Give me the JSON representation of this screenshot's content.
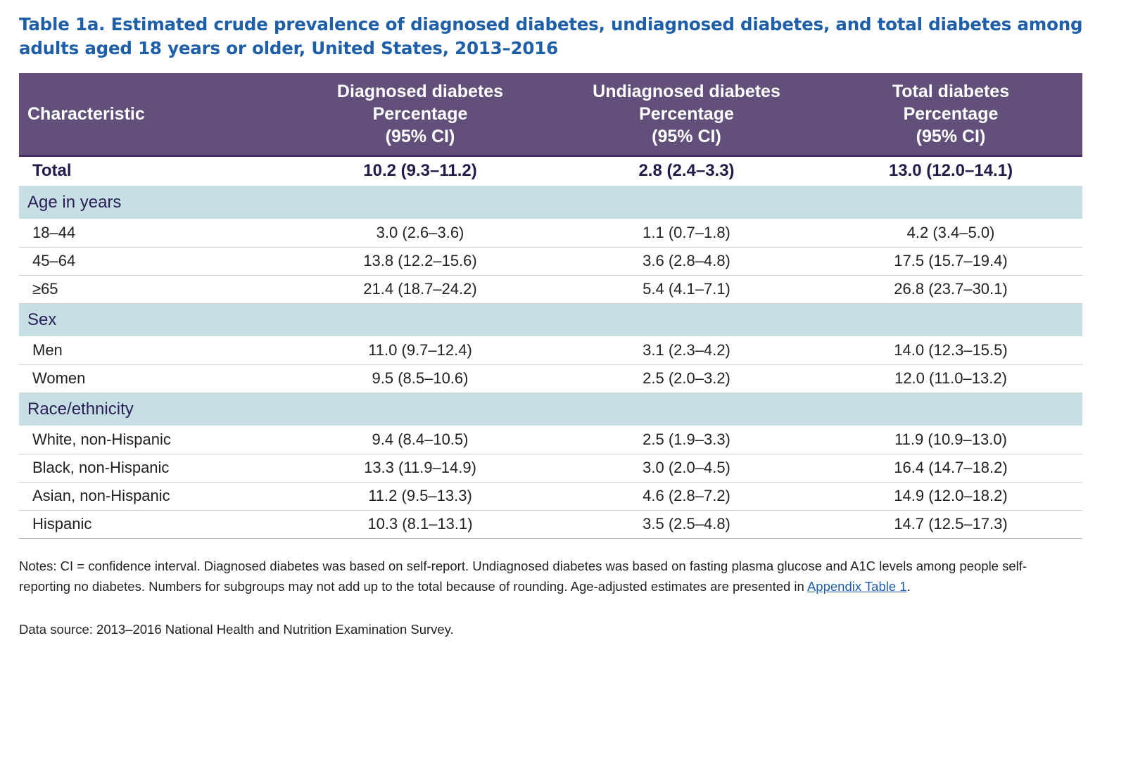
{
  "title": "Table 1a. Estimated crude prevalence of diagnosed diabetes, undiagnosed diabetes, and total diabetes among adults aged 18 years or older, United States, 2013–2016",
  "header": {
    "characteristic": "Characteristic",
    "columns": [
      {
        "line1": "Diagnosed diabetes",
        "line2": "Percentage",
        "line3": "(95% CI)"
      },
      {
        "line1": "Undiagnosed diabetes",
        "line2": "Percentage",
        "line3": "(95% CI)"
      },
      {
        "line1": "Total diabetes",
        "line2": "Percentage",
        "line3": "(95% CI)"
      }
    ]
  },
  "total": {
    "label": "Total",
    "values": [
      "10.2 (9.3–11.2)",
      "2.8 (2.4–3.3)",
      "13.0 (12.0–14.1)"
    ]
  },
  "sections": [
    {
      "heading": "Age in years",
      "rows": [
        {
          "label": "18–44",
          "values": [
            "3.0 (2.6–3.6)",
            "1.1 (0.7–1.8)",
            "4.2 (3.4–5.0)"
          ]
        },
        {
          "label": "45–64",
          "values": [
            "13.8 (12.2–15.6)",
            "3.6 (2.8–4.8)",
            "17.5 (15.7–19.4)"
          ]
        },
        {
          "label": "≥65",
          "values": [
            "21.4 (18.7–24.2)",
            "5.4 (4.1–7.1)",
            "26.8 (23.7–30.1)"
          ]
        }
      ]
    },
    {
      "heading": "Sex",
      "rows": [
        {
          "label": "Men",
          "values": [
            "11.0 (9.7–12.4)",
            "3.1 (2.3–4.2)",
            "14.0 (12.3–15.5)"
          ]
        },
        {
          "label": "Women",
          "values": [
            "9.5 (8.5–10.6)",
            "2.5 (2.0–3.2)",
            "12.0 (11.0–13.2)"
          ]
        }
      ]
    },
    {
      "heading": "Race/ethnicity",
      "rows": [
        {
          "label": "White, non-Hispanic",
          "values": [
            "9.4 (8.4–10.5)",
            "2.5 (1.9–3.3)",
            "11.9 (10.9–13.0)"
          ]
        },
        {
          "label": "Black, non-Hispanic",
          "values": [
            "13.3 (11.9–14.9)",
            "3.0 (2.0–4.5)",
            "16.4 (14.7–18.2)"
          ]
        },
        {
          "label": "Asian, non-Hispanic",
          "values": [
            "11.2 (9.5–13.3)",
            "4.6 (2.8–7.2)",
            "14.9 (12.0–18.2)"
          ]
        },
        {
          "label": "Hispanic",
          "values": [
            "10.3 (8.1–13.1)",
            "3.5 (2.5–4.8)",
            "14.7 (12.5–17.3)"
          ]
        }
      ]
    }
  ],
  "notes": {
    "text_before_link": "Notes: CI = confidence interval. Diagnosed diabetes was based on self-report. Undiagnosed diabetes was based on fasting plasma glucose and A1C levels among people self-reporting no diabetes. Numbers for subgroups may not add up to the total because of rounding. Age-adjusted estimates are presented in ",
    "link_text": "Appendix Table 1",
    "text_after_link": "."
  },
  "source": "Data source: 2013–2016 National Health and Nutrition Examination Survey.",
  "colors": {
    "title": "#1f5fa8",
    "header_bg": "#62507a",
    "section_bg": "#c6dfe5",
    "link": "#1f5fa8"
  }
}
